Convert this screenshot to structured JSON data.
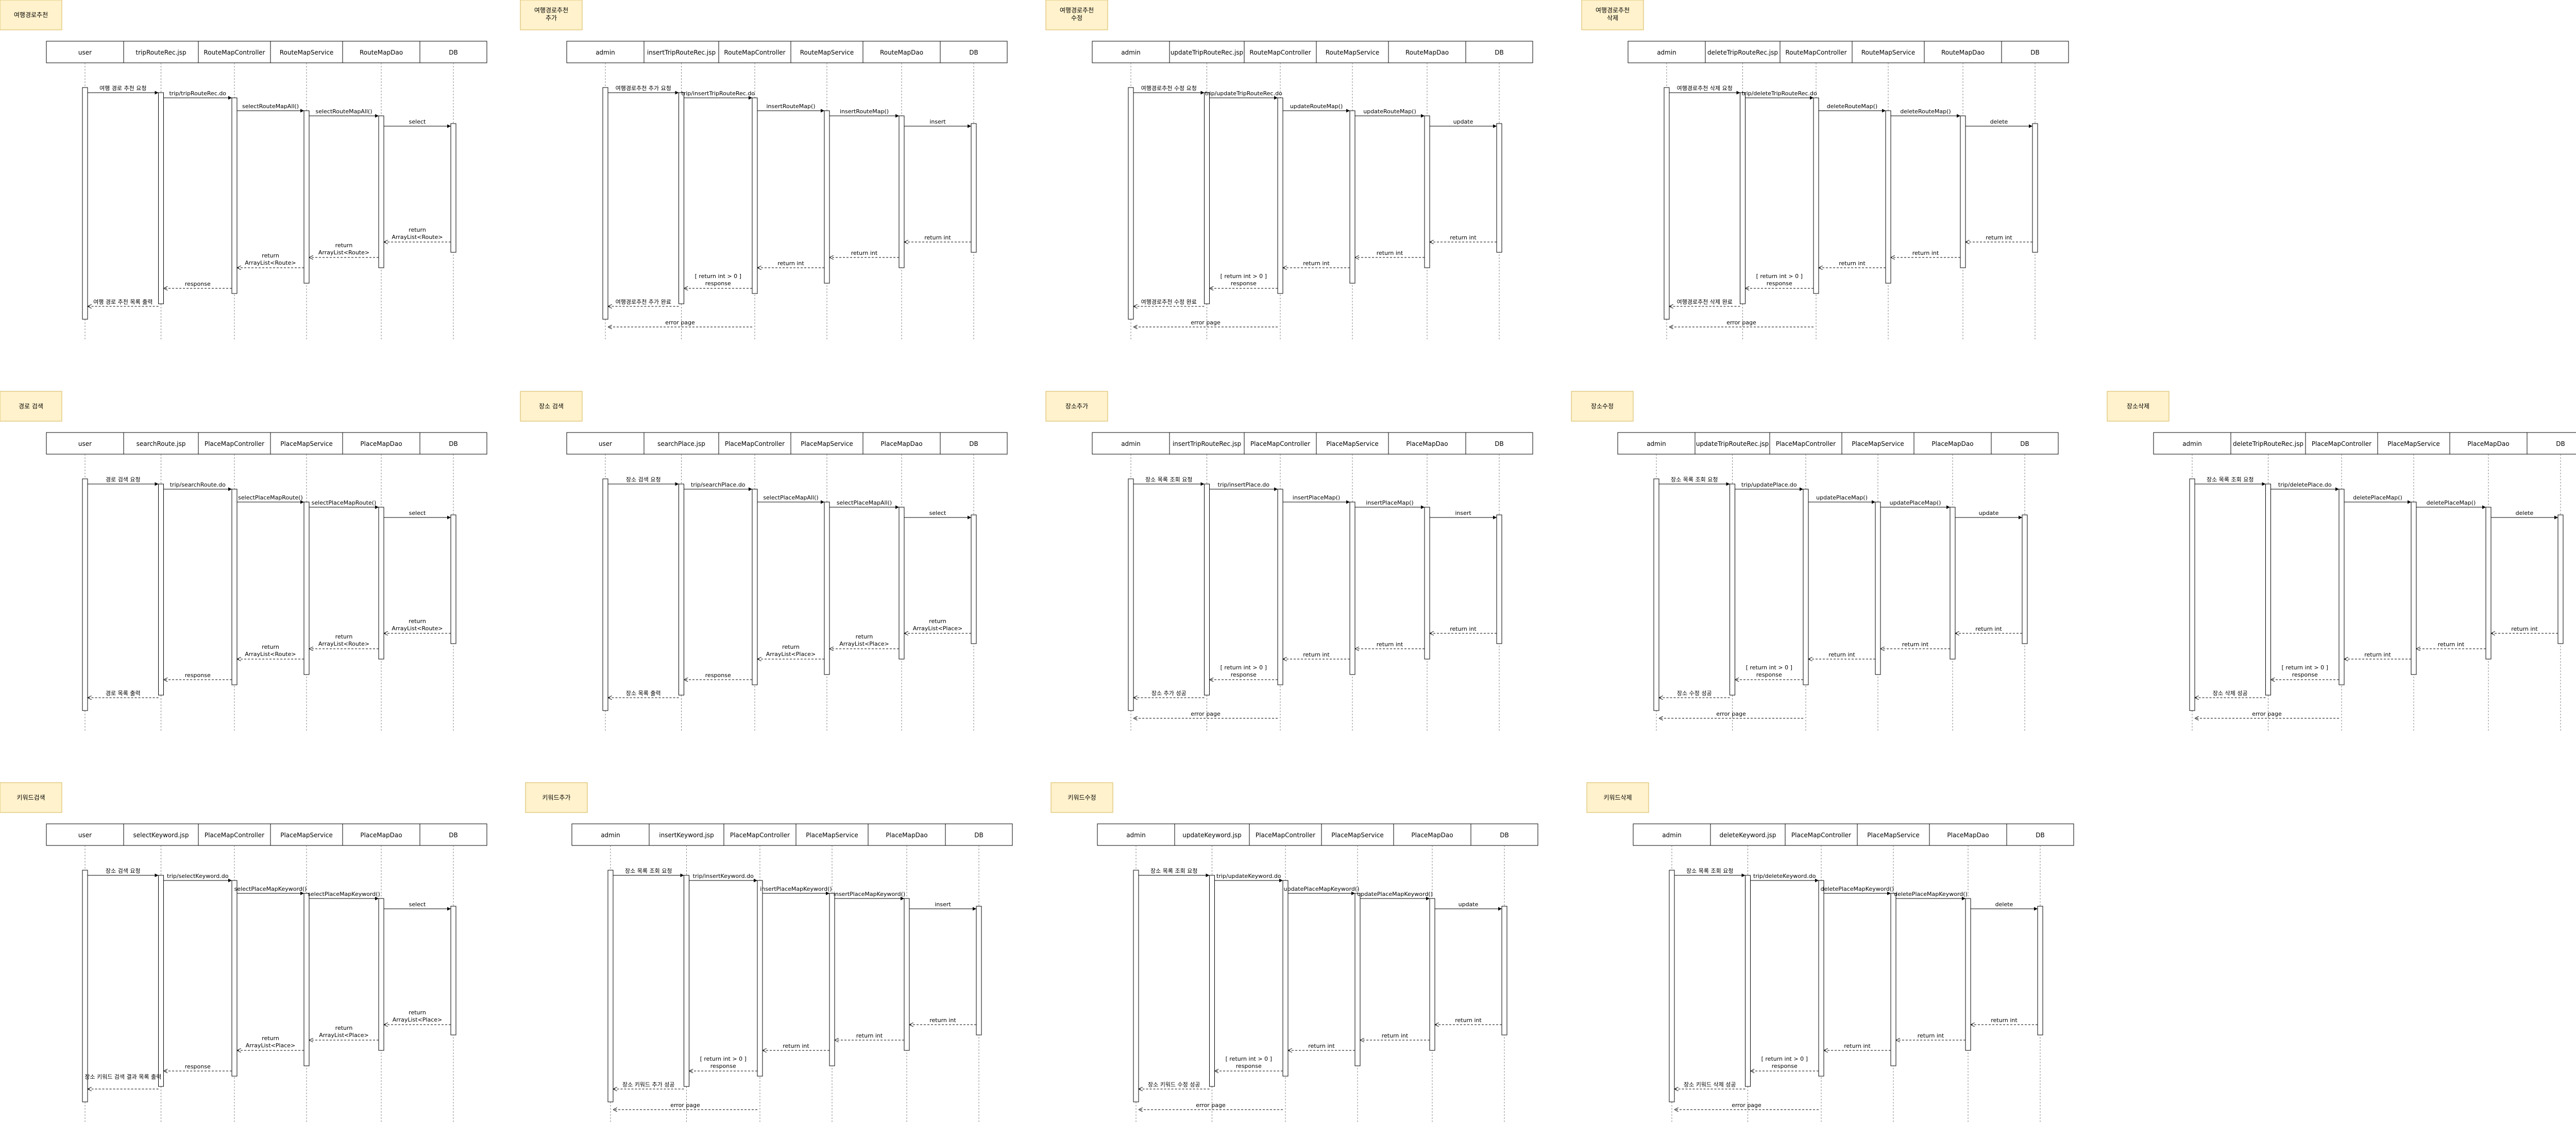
{
  "colors": {
    "note_fill": "#fff2cc",
    "note_stroke": "#d6b656",
    "line": "#000000",
    "lifeline": "#808080"
  },
  "diagrams": [
    {
      "title": "여행경로추천",
      "participants": [
        "user",
        "tripRouteRec.jsp",
        "RouteMapController",
        "RouteMapService",
        "RouteMapDao",
        "DB"
      ],
      "calls": [
        "여행 경로 추천 요청",
        "trip/tripRouteRec.do",
        "selectRouteMapAll()",
        "selectRouteMapAll()",
        "select"
      ],
      "returns": [
        "return ArrayList<Route>",
        "return ArrayList<Route>",
        "return ArrayList<Route>",
        "response",
        "여행 경로 추천 목록 출력"
      ],
      "error": ""
    },
    {
      "title": "여행경로추천 추가",
      "participants": [
        "admin",
        "insertTripRouteRec.jsp",
        "RouteMapController",
        "RouteMapService",
        "RouteMapDao",
        "DB"
      ],
      "calls": [
        "여행경로추천 추가 요청",
        "trip/insertTripRouteRec.do",
        "insertRouteMap()",
        "insertRouteMap()",
        "insert"
      ],
      "returns": [
        "return int",
        "return int",
        "return int",
        "[ return int > 0 ] response",
        "여행경로추천 추가 완료"
      ],
      "error": "error page"
    },
    {
      "title": "여행경로추천 수정",
      "participants": [
        "admin",
        "updateTripRouteRec.jsp",
        "RouteMapController",
        "RouteMapService",
        "RouteMapDao",
        "DB"
      ],
      "calls": [
        "여행경로추천 수정 요청",
        "trip/updateTripRouteRec.do",
        "updateRouteMap()",
        "updateRouteMap()",
        "update"
      ],
      "returns": [
        "return int",
        "return int",
        "return int",
        "[ return int > 0 ] response",
        "여행경로추천 수정 완료"
      ],
      "error": "error page"
    },
    {
      "title": "여행경로추천 삭제",
      "participants": [
        "admin",
        "deleteTripRouteRec.jsp",
        "RouteMapController",
        "RouteMapService",
        "RouteMapDao",
        "DB"
      ],
      "calls": [
        "여행경로추천 삭제 요청",
        "trip/deleteTripRouteRec.do",
        "deleteRouteMap()",
        "deleteRouteMap()",
        "delete"
      ],
      "returns": [
        "return int",
        "return int",
        "return int",
        "[ return int > 0 ] response",
        "여행경로추천 삭제 완료"
      ],
      "error": "error page"
    },
    {
      "title": "경로 검색",
      "participants": [
        "user",
        "searchRoute.jsp",
        "PlaceMapController",
        "PlaceMapService",
        "PlaceMapDao",
        "DB"
      ],
      "calls": [
        "경로 검색 요청",
        "trip/searchRoute.do",
        "selectPlaceMapRoute()",
        "selectPlaceMapRoute()",
        "select"
      ],
      "returns": [
        "return ArrayList<Route>",
        "return ArrayList<Route>",
        "return ArrayList<Route>",
        "response",
        "경로 목록 출력"
      ],
      "error": ""
    },
    {
      "title": "장소 검색",
      "participants": [
        "user",
        "searchPlace.jsp",
        "PlaceMapController",
        "PlaceMapService",
        "PlaceMapDao",
        "DB"
      ],
      "calls": [
        "장소 검색 요청",
        "trip/searchPlace.do",
        "selectPlaceMapAll()",
        "selectPlaceMapAll()",
        "select"
      ],
      "returns": [
        "return ArrayList<Place>",
        "return ArrayList<Place>",
        "return ArrayList<Place>",
        "response",
        "장소 목록 출력"
      ],
      "error": ""
    },
    {
      "title": "장소추가",
      "participants": [
        "admin",
        "insertTripRouteRec.jsp",
        "PlaceMapController",
        "PlaceMapService",
        "PlaceMapDao",
        "DB"
      ],
      "calls": [
        "장소 목록 조회 요청",
        "trip/insertPlace.do",
        "insertPlaceMap()",
        "insertPlaceMap()",
        "insert"
      ],
      "returns": [
        "return int",
        "return int",
        "return int",
        "[ return int > 0 ] response",
        "장소 추가 성공"
      ],
      "error": "error page"
    },
    {
      "title": "장소수정",
      "participants": [
        "admin",
        "updateTripRouteRec.jsp",
        "PlaceMapController",
        "PlaceMapService",
        "PlaceMapDao",
        "DB"
      ],
      "calls": [
        "장소 목록 조회 요청",
        "trip/updatePlace.do",
        "updatePlaceMap()",
        "updatePlaceMap()",
        "update"
      ],
      "returns": [
        "return int",
        "return int",
        "return int",
        "[ return int > 0 ] response",
        "장소 수정 성공"
      ],
      "error": "error page"
    },
    {
      "title": "장소삭제",
      "participants": [
        "admin",
        "deleteTripRouteRec.jsp",
        "PlaceMapController",
        "PlaceMapService",
        "PlaceMapDao",
        "DB"
      ],
      "calls": [
        "장소 목록 조회 요청",
        "trip/deletePlace.do",
        "deletePlaceMap()",
        "deletePlaceMap()",
        "delete"
      ],
      "returns": [
        "return int",
        "return int",
        "return int",
        "[ return int > 0 ] response",
        "장소 삭제 성공"
      ],
      "error": "error page"
    },
    {
      "title": "키워드검색",
      "participants": [
        "user",
        "selectKeyword.jsp",
        "PlaceMapController",
        "PlaceMapService",
        "PlaceMapDao",
        "DB"
      ],
      "calls": [
        "장소 검색 요청",
        "trip/selectKeyword.do",
        "selectPlaceMapKeyword()",
        "selectPlaceMapKeyword()",
        "select"
      ],
      "returns": [
        "return ArrayList<Place>",
        "return ArrayList<Place>",
        "return ArrayList<Place>",
        "response",
        "장소 키워드 검색 결과 목록 출력"
      ],
      "error": ""
    },
    {
      "title": "키워드추가",
      "participants": [
        "admin",
        "insertKeyword.jsp",
        "PlaceMapController",
        "PlaceMapService",
        "PlaceMapDao",
        "DB"
      ],
      "calls": [
        "장소 목록 조회 요청",
        "trip/insertKeyword.do",
        "insertPlaceMapKeyword()",
        "insertPlaceMapKeyword()",
        "insert"
      ],
      "returns": [
        "return int",
        "return int",
        "return int",
        "[ return int > 0 ] response",
        "장소 키워드 추가 성공"
      ],
      "error": "error page"
    },
    {
      "title": "키워드수정",
      "participants": [
        "admin",
        "updateKeyword.jsp",
        "PlaceMapController",
        "PlaceMapService",
        "PlaceMapDao",
        "DB"
      ],
      "calls": [
        "장소 목록 조회 요청",
        "trip/updateKeyword.do",
        "updatePlaceMapKeyword()",
        "updatePlaceMapKeyword()",
        "update"
      ],
      "returns": [
        "return int",
        "return int",
        "return int",
        "[ return int > 0 ] response",
        "장소 키워드 수정 성공"
      ],
      "error": "error page"
    },
    {
      "title": "키워드삭제",
      "participants": [
        "admin",
        "deleteKeyword.jsp",
        "PlaceMapController",
        "PlaceMapService",
        "PlaceMapDao",
        "DB"
      ],
      "calls": [
        "장소 목록 조회 요청",
        "trip/deleteKeyword.do",
        "deletePlaceMapKeyword()",
        "deletePlaceMapKeyword()",
        "delete"
      ],
      "returns": [
        "return int",
        "return int",
        "return int",
        "[ return int > 0 ] response",
        "장소 키워드 삭제 성공"
      ],
      "error": "error page"
    }
  ]
}
